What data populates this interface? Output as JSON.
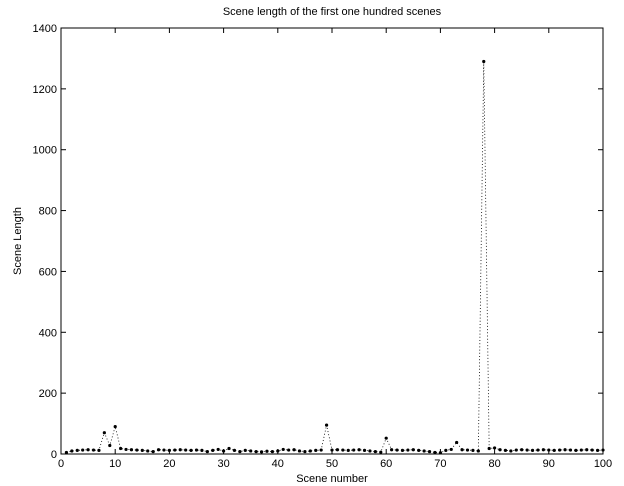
{
  "chart_data": {
    "type": "line",
    "title": "Scene length of the first one hundred scenes",
    "xlabel": "Scene number",
    "ylabel": "Scene Length",
    "xlim": [
      0,
      100
    ],
    "ylim": [
      0,
      1400
    ],
    "xticks": [
      0,
      10,
      20,
      30,
      40,
      50,
      60,
      70,
      80,
      90,
      100
    ],
    "yticks": [
      0,
      200,
      400,
      600,
      800,
      1000,
      1200,
      1400
    ],
    "grid": false,
    "line_style": "dotted",
    "marker": "dot",
    "color": "#000000",
    "series": [
      {
        "x": [
          1,
          2,
          3,
          4,
          5,
          6,
          7,
          8,
          9,
          10,
          11,
          12,
          13,
          14,
          15,
          16,
          17,
          18,
          19,
          20,
          21,
          22,
          23,
          24,
          25,
          26,
          27,
          28,
          29,
          30,
          31,
          32,
          33,
          34,
          35,
          36,
          37,
          38,
          39,
          40,
          41,
          42,
          43,
          44,
          45,
          46,
          47,
          48,
          49,
          50,
          51,
          52,
          53,
          54,
          55,
          56,
          57,
          58,
          59,
          60,
          61,
          62,
          63,
          64,
          65,
          66,
          67,
          68,
          69,
          70,
          71,
          72,
          73,
          74,
          75,
          76,
          77,
          78,
          79,
          80,
          81,
          82,
          83,
          84,
          85,
          86,
          87,
          88,
          89,
          90,
          91,
          92,
          93,
          94,
          95,
          96,
          97,
          98,
          99,
          100
        ],
        "values": [
          5,
          10,
          12,
          13,
          14,
          13,
          12,
          70,
          28,
          90,
          18,
          15,
          14,
          13,
          12,
          10,
          8,
          14,
          13,
          12,
          13,
          14,
          13,
          12,
          13,
          12,
          8,
          12,
          15,
          10,
          18,
          12,
          8,
          12,
          10,
          8,
          7,
          9,
          8,
          10,
          15,
          13,
          14,
          10,
          8,
          10,
          12,
          13,
          95,
          13,
          14,
          13,
          12,
          13,
          14,
          12,
          10,
          8,
          6,
          52,
          14,
          13,
          12,
          13,
          14,
          12,
          10,
          8,
          5,
          4,
          12,
          15,
          38,
          14,
          13,
          12,
          10,
          1290,
          18,
          20,
          14,
          12,
          10,
          13,
          14,
          13,
          12,
          13,
          14,
          13,
          12,
          13,
          14,
          13,
          12,
          13,
          14,
          13,
          12,
          13
        ]
      }
    ]
  }
}
